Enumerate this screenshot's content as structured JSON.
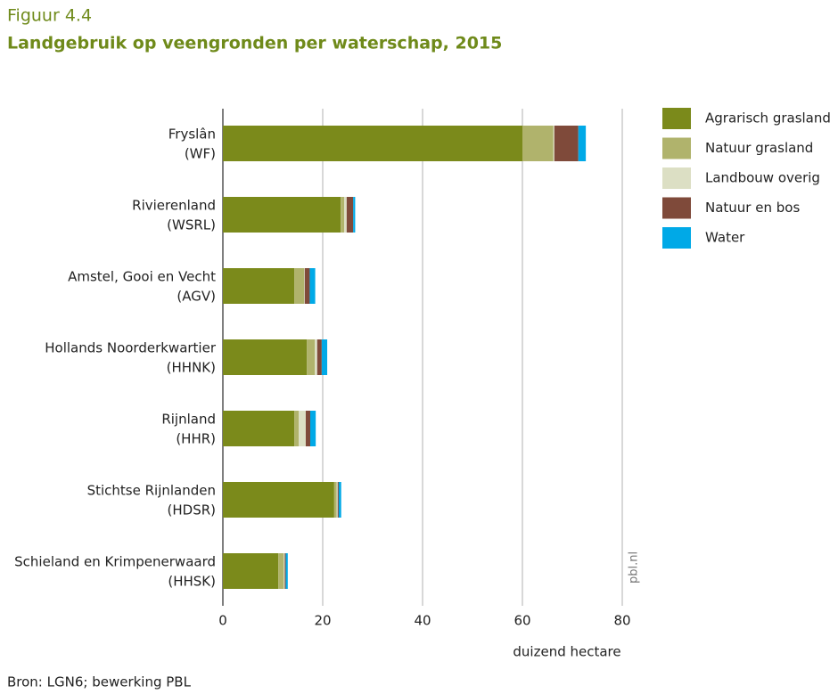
{
  "chart_data": {
    "type": "stacked-barh",
    "supertitle": "Figuur 4.4",
    "title": "Landgebruik op veengronden per waterschap, 2015",
    "categories": [
      [
        "Fryslân",
        "(WF)"
      ],
      [
        "Rivierenland",
        "(WSRL)"
      ],
      [
        "Amstel, Gooi en Vecht",
        "(AGV)"
      ],
      [
        "Hollands Noorderkwartier",
        "(HHNK)"
      ],
      [
        "Rijnland",
        "(HHR)"
      ],
      [
        "Stichtse Rijnlanden",
        "(HDSR)"
      ],
      [
        "Schieland en Krimpenerwaard",
        "(HHSK)"
      ]
    ],
    "series": [
      {
        "name": "Agrarisch grasland",
        "color": "#7b8a1b",
        "values": [
          60,
          23.6,
          14.3,
          16.8,
          14.3,
          22.3,
          11.1
        ]
      },
      {
        "name": "Natuur grasland",
        "color": "#b0b36c",
        "values": [
          6.2,
          0.7,
          2.0,
          1.6,
          0.9,
          0.5,
          1.1
        ]
      },
      {
        "name": "Landbouw overig",
        "color": "#dcdfc4",
        "values": [
          0.2,
          0.5,
          0.1,
          0.5,
          1.4,
          0.2,
          0.2
        ]
      },
      {
        "name": "Natuur en bos",
        "color": "#7f4a3a",
        "values": [
          4.8,
          1.3,
          1.0,
          0.9,
          0.9,
          0.2,
          0.2
        ]
      },
      {
        "name": "Water",
        "color": "#00a9e7",
        "values": [
          1.5,
          0.4,
          1.1,
          1.1,
          1.1,
          0.5,
          0.4
        ]
      }
    ],
    "xlim": [
      0,
      80
    ],
    "xticks": [
      0,
      20,
      40,
      60,
      80
    ],
    "grid": true,
    "xlabel": "duizend hectare",
    "watermark": "pbl.nl",
    "source": "Bron: LGN6; bewerking PBL",
    "legend": "upper-right"
  }
}
